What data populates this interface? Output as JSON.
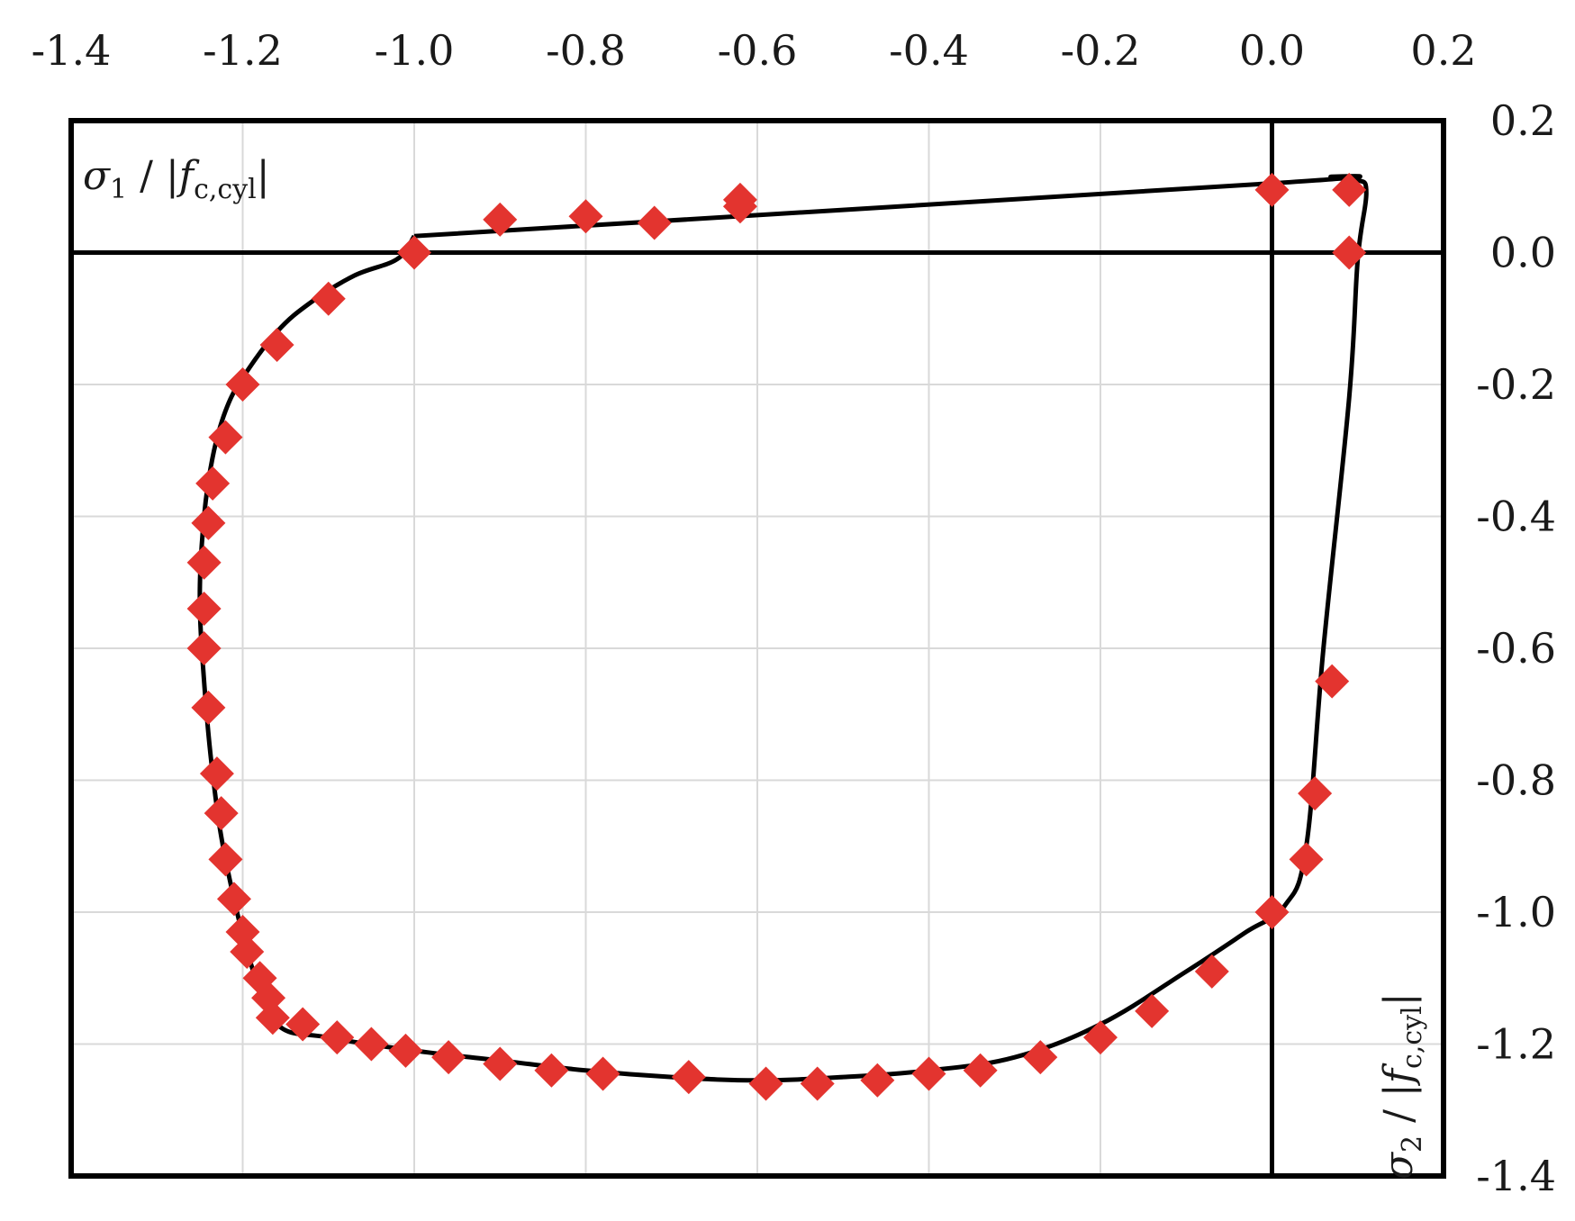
{
  "chart_data": {
    "type": "scatter",
    "title": "",
    "xlabel": {
      "prefix": "σ",
      "sub1": "1",
      "mid": " / |",
      "f": "f",
      "sub2": "c,cyl",
      "end": "|"
    },
    "ylabel": {
      "prefix": "σ",
      "sub1": "2",
      "mid": " / |",
      "f": "f",
      "sub2": "c,cyl",
      "end": "|"
    },
    "xlim": [
      -1.4,
      0.2
    ],
    "ylim": [
      -1.4,
      0.2
    ],
    "x_ticks": [
      "-1.4",
      "-1.2",
      "-1.0",
      "-0.8",
      "-0.6",
      "-0.4",
      "-0.2",
      "0.0",
      "0.2"
    ],
    "y_ticks": [
      "0.2",
      "0.0",
      "-0.2",
      "-0.4",
      "-0.6",
      "-0.8",
      "-1.0",
      "-1.2",
      "-1.4"
    ],
    "x_tick_values": [
      -1.4,
      -1.2,
      -1.0,
      -0.8,
      -0.6,
      -0.4,
      -0.2,
      0.0,
      0.2
    ],
    "y_tick_values": [
      0.2,
      0.0,
      -0.2,
      -0.4,
      -0.6,
      -0.8,
      -1.0,
      -1.2,
      -1.4
    ],
    "grid": true,
    "x_axis_position": "top",
    "y_axis_position": "right",
    "colors": {
      "markers": "#e3342f",
      "curve": "#000000",
      "grid": "#d9d9d9",
      "frame": "#000000"
    },
    "series": [
      {
        "kind": "line",
        "points": [
          [
            -1.0,
            0.025
          ],
          [
            0.0,
            0.105
          ],
          [
            0.07,
            0.115
          ],
          [
            0.1,
            0.11
          ],
          [
            0.11,
            0.09
          ],
          [
            0.1,
            -0.01
          ],
          [
            0.09,
            -0.22
          ],
          [
            0.06,
            -0.6
          ],
          [
            0.04,
            -0.9
          ],
          [
            0.015,
            -0.99
          ],
          [
            -0.03,
            -1.03
          ],
          [
            -0.1,
            -1.09
          ],
          [
            -0.2,
            -1.17
          ],
          [
            -0.3,
            -1.22
          ],
          [
            -0.4,
            -1.24
          ],
          [
            -0.5,
            -1.25
          ],
          [
            -0.6,
            -1.255
          ],
          [
            -0.7,
            -1.25
          ],
          [
            -0.8,
            -1.24
          ],
          [
            -0.9,
            -1.225
          ],
          [
            -1.0,
            -1.21
          ],
          [
            -1.1,
            -1.19
          ],
          [
            -1.16,
            -1.17
          ],
          [
            -1.19,
            -1.08
          ],
          [
            -1.22,
            -0.92
          ],
          [
            -1.235,
            -0.79
          ],
          [
            -1.245,
            -0.65
          ],
          [
            -1.25,
            -0.52
          ],
          [
            -1.245,
            -0.4
          ],
          [
            -1.235,
            -0.31
          ],
          [
            -1.22,
            -0.24
          ],
          [
            -1.2,
            -0.19
          ],
          [
            -1.16,
            -0.12
          ],
          [
            -1.12,
            -0.075
          ],
          [
            -1.07,
            -0.035
          ],
          [
            -1.02,
            -0.01
          ],
          [
            -1.0,
            0.025
          ]
        ]
      },
      {
        "kind": "scatter",
        "points": [
          [
            -1.0,
            0.0
          ],
          [
            -0.9,
            0.05
          ],
          [
            -0.8,
            0.055
          ],
          [
            -0.72,
            0.045
          ],
          [
            -0.62,
            0.08
          ],
          [
            -0.62,
            0.07
          ],
          [
            0.0,
            0.095
          ],
          [
            0.09,
            0.095
          ],
          [
            0.09,
            0.0
          ],
          [
            -1.1,
            -0.07
          ],
          [
            -1.16,
            -0.14
          ],
          [
            -1.2,
            -0.2
          ],
          [
            -1.22,
            -0.28
          ],
          [
            -1.235,
            -0.35
          ],
          [
            -1.24,
            -0.41
          ],
          [
            -1.245,
            -0.47
          ],
          [
            -1.245,
            -0.54
          ],
          [
            -1.245,
            -0.6
          ],
          [
            -1.24,
            -0.69
          ],
          [
            -1.23,
            -0.79
          ],
          [
            -1.225,
            -0.85
          ],
          [
            -1.22,
            -0.92
          ],
          [
            -1.21,
            -0.98
          ],
          [
            -1.2,
            -1.03
          ],
          [
            -1.195,
            -1.06
          ],
          [
            -1.18,
            -1.1
          ],
          [
            -1.17,
            -1.13
          ],
          [
            -1.165,
            -1.16
          ],
          [
            -1.13,
            -1.17
          ],
          [
            -1.09,
            -1.19
          ],
          [
            -1.05,
            -1.2
          ],
          [
            -1.01,
            -1.21
          ],
          [
            -0.96,
            -1.22
          ],
          [
            -0.9,
            -1.23
          ],
          [
            -0.84,
            -1.24
          ],
          [
            -0.78,
            -1.245
          ],
          [
            -0.68,
            -1.25
          ],
          [
            -0.59,
            -1.26
          ],
          [
            -0.53,
            -1.26
          ],
          [
            -0.46,
            -1.255
          ],
          [
            -0.4,
            -1.245
          ],
          [
            -0.34,
            -1.24
          ],
          [
            -0.27,
            -1.22
          ],
          [
            -0.2,
            -1.19
          ],
          [
            -0.14,
            -1.15
          ],
          [
            -0.07,
            -1.09
          ],
          [
            0.0,
            -1.0
          ],
          [
            0.04,
            -0.92
          ],
          [
            0.05,
            -0.82
          ],
          [
            0.07,
            -0.65
          ]
        ]
      }
    ]
  }
}
